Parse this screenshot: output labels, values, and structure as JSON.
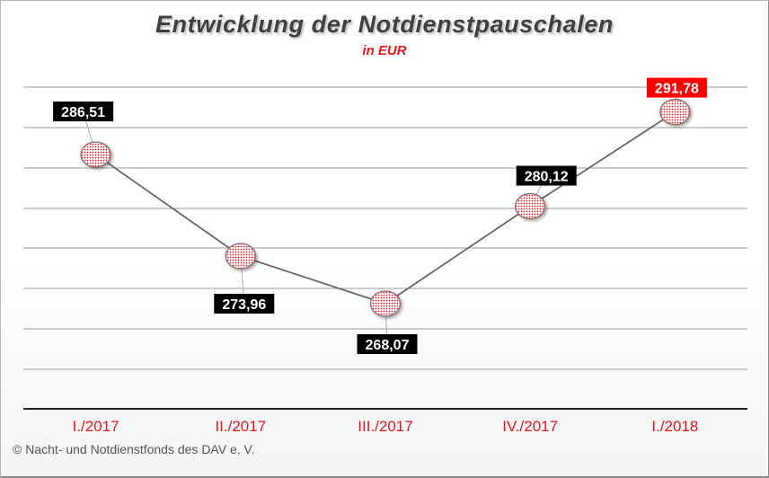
{
  "chart_data": {
    "type": "line",
    "title": "Entwicklung der Notdienstpauschalen",
    "subtitle": "in EUR",
    "categories": [
      "I./2017",
      "II./2017",
      "III./2017",
      "IV./2017",
      "I./2018"
    ],
    "series": [
      {
        "values": [
          286.51,
          273.96,
          268.07,
          280.12,
          291.78
        ]
      }
    ],
    "data_labels": [
      "286,51",
      "273,96",
      "268,07",
      "280,12",
      "291,78"
    ],
    "highlighted_label_index": 4,
    "ylim": [
      260,
      298
    ],
    "grid": true,
    "y_ticks_shown": false,
    "legend": "none",
    "colors": {
      "line": "#666666",
      "marker_fill": "#e8151b",
      "category_text": "#e8151b",
      "label_bg": "#000000",
      "label_highlight_bg": "#ff0000",
      "gridline": "#9a9a9a"
    }
  },
  "footer": {
    "copyright": "© Nacht- und Notdienstfonds  des DAV e. V."
  }
}
